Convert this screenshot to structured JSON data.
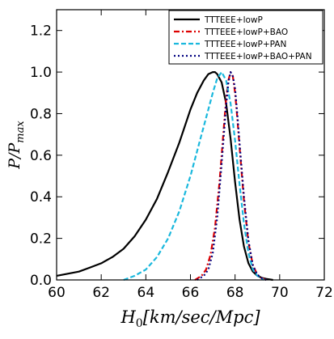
{
  "chart_data": {
    "type": "line",
    "xlabel": "H_0[km/sec/Mpc]",
    "ylabel": "P/P_max",
    "xlabel_parts": {
      "main": "H",
      "sub": "0",
      "rest": "[km/sec/Mpc]"
    },
    "ylabel_parts": {
      "main": "P/P",
      "sub": "max"
    },
    "xlim": [
      60,
      72
    ],
    "ylim": [
      0.0,
      1.3
    ],
    "xticks": [
      "60",
      "62",
      "64",
      "66",
      "68",
      "70",
      "72"
    ],
    "yticks": [
      "0.0",
      "0.2",
      "0.4",
      "0.6",
      "0.8",
      "1.0",
      "1.2"
    ],
    "grid": false,
    "legend_position": "top-right",
    "series": [
      {
        "name": "TTTEEE+lowP",
        "color": "#000000",
        "dash": "solid",
        "x": [
          60.0,
          60.5,
          61.0,
          61.5,
          62.0,
          62.5,
          63.0,
          63.5,
          64.0,
          64.5,
          65.0,
          65.5,
          66.0,
          66.3,
          66.6,
          66.8,
          67.0,
          67.1,
          67.2,
          67.4,
          67.6,
          67.8,
          68.0,
          68.2,
          68.4,
          68.6,
          68.8,
          69.0,
          69.2,
          69.4,
          69.7
        ],
        "y": [
          0.02,
          0.03,
          0.04,
          0.06,
          0.08,
          0.11,
          0.15,
          0.21,
          0.29,
          0.39,
          0.52,
          0.66,
          0.82,
          0.9,
          0.96,
          0.99,
          1.0,
          1.0,
          0.99,
          0.95,
          0.85,
          0.68,
          0.47,
          0.29,
          0.16,
          0.08,
          0.04,
          0.02,
          0.01,
          0.005,
          0.0
        ]
      },
      {
        "name": "TTTEEE+lowP+BAO",
        "color": "#dd0000",
        "dash": "dashdot",
        "x": [
          66.2,
          66.5,
          66.7,
          66.9,
          67.1,
          67.3,
          67.5,
          67.6,
          67.7,
          67.8,
          67.9,
          68.0,
          68.1,
          68.2,
          68.4,
          68.6,
          68.8,
          69.0,
          69.2,
          69.4
        ],
        "y": [
          0.0,
          0.02,
          0.05,
          0.12,
          0.25,
          0.47,
          0.74,
          0.87,
          0.96,
          1.0,
          0.98,
          0.9,
          0.78,
          0.64,
          0.38,
          0.18,
          0.07,
          0.025,
          0.008,
          0.0
        ]
      },
      {
        "name": "TTTEEE+lowP+PAN",
        "color": "#1ab8dd",
        "dash": "dashed",
        "x": [
          63.0,
          63.5,
          64.0,
          64.5,
          65.0,
          65.5,
          66.0,
          66.4,
          66.8,
          67.0,
          67.2,
          67.4,
          67.6,
          67.8,
          68.0,
          68.2,
          68.4,
          68.6,
          68.8,
          69.0,
          69.3
        ],
        "y": [
          0.0,
          0.02,
          0.05,
          0.11,
          0.2,
          0.33,
          0.5,
          0.66,
          0.82,
          0.9,
          0.97,
          1.0,
          0.96,
          0.85,
          0.67,
          0.46,
          0.27,
          0.13,
          0.05,
          0.02,
          0.0
        ]
      },
      {
        "name": "TTTEEE+lowP+BAO+PAN",
        "color": "#000080",
        "dash": "dotted",
        "x": [
          66.3,
          66.6,
          66.8,
          67.0,
          67.2,
          67.4,
          67.6,
          67.7,
          67.8,
          67.9,
          68.0,
          68.1,
          68.2,
          68.4,
          68.6,
          68.8,
          69.0,
          69.2,
          69.4
        ],
        "y": [
          0.0,
          0.02,
          0.05,
          0.13,
          0.3,
          0.56,
          0.84,
          0.95,
          1.0,
          0.98,
          0.92,
          0.8,
          0.66,
          0.4,
          0.19,
          0.07,
          0.025,
          0.008,
          0.0
        ]
      }
    ]
  }
}
